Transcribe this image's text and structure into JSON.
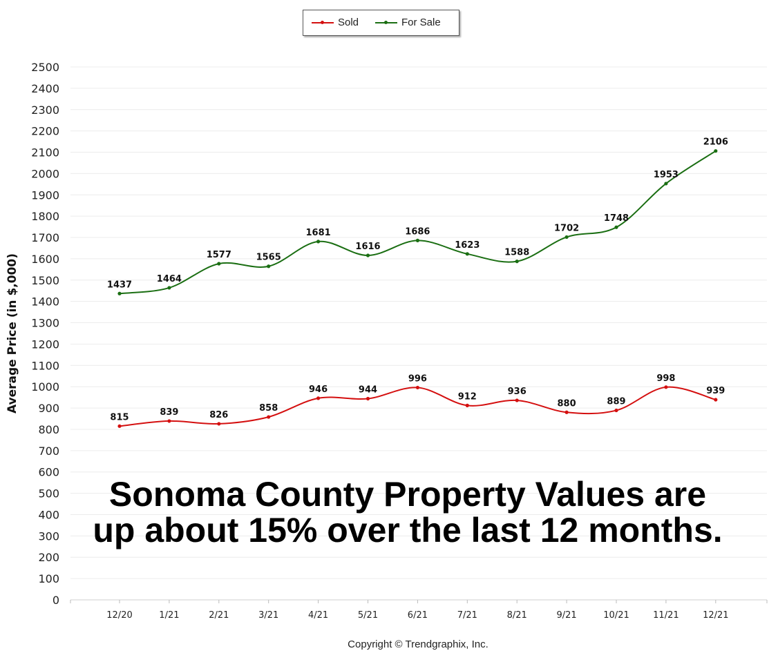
{
  "chart_data": {
    "type": "line",
    "categories": [
      "12/20",
      "1/21",
      "2/21",
      "3/21",
      "4/21",
      "5/21",
      "6/21",
      "7/21",
      "8/21",
      "9/21",
      "10/21",
      "11/21",
      "12/21"
    ],
    "series": [
      {
        "name": "Sold",
        "color": "#d40f0f",
        "values": [
          815,
          839,
          826,
          858,
          946,
          944,
          996,
          912,
          936,
          880,
          889,
          998,
          939
        ]
      },
      {
        "name": "For Sale",
        "color": "#1a6e12",
        "values": [
          1437,
          1464,
          1577,
          1565,
          1681,
          1616,
          1686,
          1623,
          1588,
          1702,
          1748,
          1953,
          2106
        ]
      }
    ],
    "ylabel": "Average Price (in $,000)",
    "xlabel": "",
    "ylim": [
      0,
      2500
    ],
    "ytick_step": 100,
    "grid": true,
    "legend": "top-center"
  },
  "headline": {
    "line1": "Sonoma County Property Values are",
    "line2": "up about 15% over the last 12 months."
  },
  "copyright": "Copyright © Trendgraphix, Inc."
}
